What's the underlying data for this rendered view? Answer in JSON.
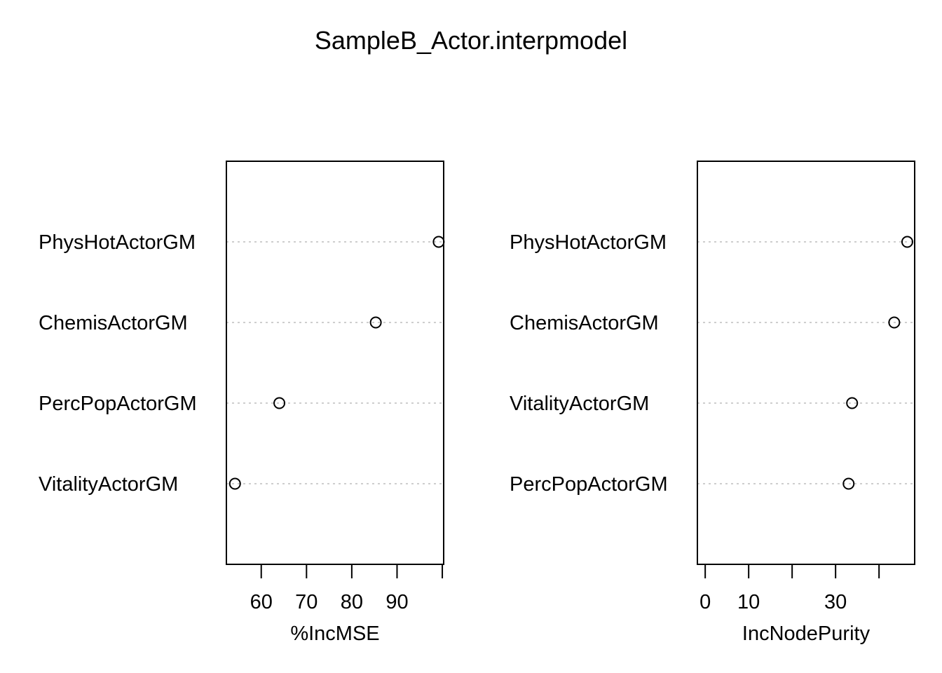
{
  "title": "SampleB_Actor.interpmodel",
  "colors": {
    "frame": "#000000",
    "guide": "#bebebe",
    "point_stroke": "#000000"
  },
  "chart_data": [
    {
      "type": "scatter",
      "name": "left-panel",
      "xlabel": "%IncMSE",
      "categories": [
        "PhysHotActorGM",
        "ChemisActorGM",
        "PercPopActorGM",
        "VitalityActorGM"
      ],
      "values": [
        99.2,
        85.3,
        64.0,
        54.2
      ],
      "xlim": [
        52.3,
        100.3
      ],
      "ticks": [
        60,
        70,
        80,
        90,
        100
      ],
      "tick_labels": [
        "60",
        "70",
        "80",
        "90",
        ""
      ]
    },
    {
      "type": "scatter",
      "name": "right-panel",
      "xlabel": "IncNodePurity",
      "categories": [
        "PhysHotActorGM",
        "ChemisActorGM",
        "VitalityActorGM",
        "PercPopActorGM"
      ],
      "values": [
        46.5,
        43.5,
        33.8,
        33.0
      ],
      "xlim": [
        -1.8,
        48.2
      ],
      "ticks": [
        0,
        10,
        20,
        30,
        40
      ],
      "tick_labels": [
        "0",
        "10",
        "",
        "30",
        ""
      ]
    }
  ]
}
